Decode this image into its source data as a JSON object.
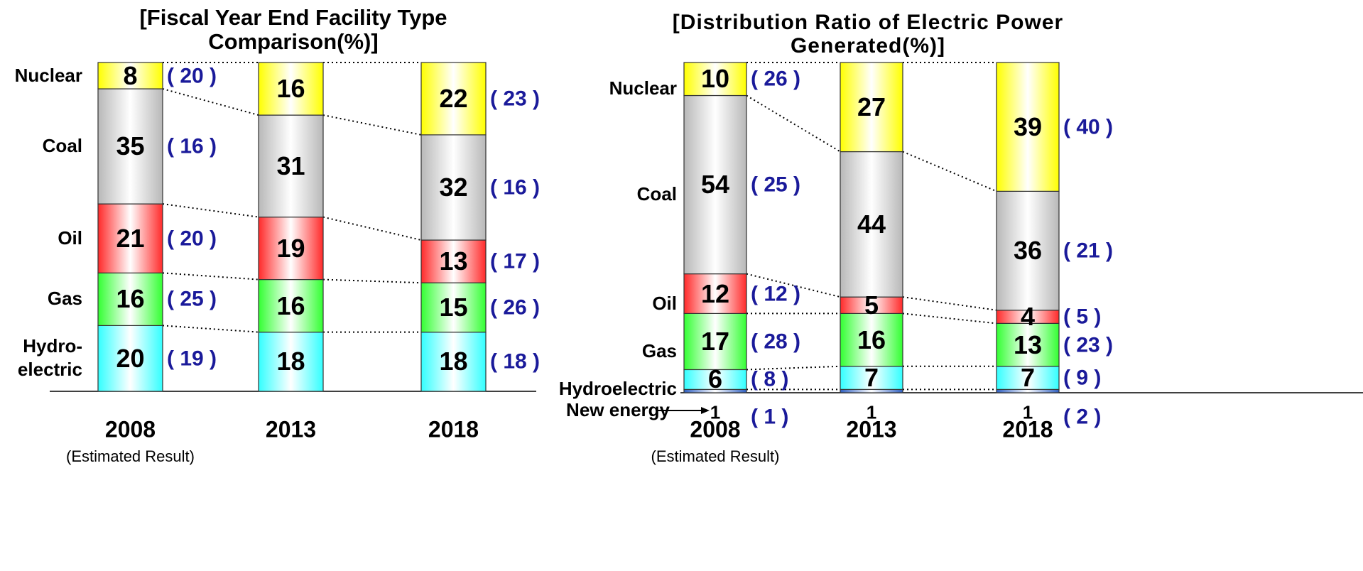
{
  "chart_data": [
    {
      "type": "bar",
      "stacked": true,
      "title": "[Fiscal Year End Facility Type Comparison(%)]",
      "categories": [
        "2008",
        "2013",
        "2018"
      ],
      "note": "(Estimated Result)",
      "series": [
        {
          "name": "Hydro-electric",
          "color": "#33ffff",
          "values": [
            20,
            18,
            18
          ],
          "bracket_labels": [
            "( 19 )",
            null,
            "( 18 )"
          ]
        },
        {
          "name": "Gas",
          "color": "#33ff33",
          "values": [
            16,
            16,
            15
          ],
          "bracket_labels": [
            "( 25 )",
            null,
            "( 26 )"
          ]
        },
        {
          "name": "Oil",
          "color": "#ff2a2a",
          "values": [
            21,
            19,
            13
          ],
          "bracket_labels": [
            "( 20 )",
            null,
            "( 17 )"
          ]
        },
        {
          "name": "Coal",
          "color": "#b8b8b8",
          "values": [
            35,
            31,
            32
          ],
          "bracket_labels": [
            "( 16 )",
            null,
            "( 16 )"
          ]
        },
        {
          "name": "Nuclear",
          "color": "#ffff00",
          "values": [
            8,
            16,
            22
          ],
          "bracket_labels": [
            "( 20 )",
            null,
            "( 23 )"
          ]
        }
      ]
    },
    {
      "type": "bar",
      "stacked": true,
      "title": "[Distribution Ratio of Electric Power Generated(%)]",
      "categories": [
        "2008",
        "2013",
        "2018"
      ],
      "note": "(Estimated Result)",
      "series": [
        {
          "name": "New energy",
          "color": "#2f5fc0",
          "values": [
            1,
            1,
            1
          ],
          "bracket_labels": [
            "( 1 )",
            null,
            "( 2 )"
          ]
        },
        {
          "name": "Hydroelectric",
          "color": "#33ffff",
          "values": [
            6,
            7,
            7
          ],
          "bracket_labels": [
            "( 8 )",
            null,
            "( 9 )"
          ]
        },
        {
          "name": "Gas",
          "color": "#33ff33",
          "values": [
            17,
            16,
            13
          ],
          "bracket_labels": [
            "( 28 )",
            null,
            "( 23 )"
          ]
        },
        {
          "name": "Oil",
          "color": "#ff2a2a",
          "values": [
            12,
            5,
            4
          ],
          "bracket_labels": [
            "( 12 )",
            null,
            "( 5 )"
          ]
        },
        {
          "name": "Coal",
          "color": "#b8b8b8",
          "values": [
            54,
            44,
            36
          ],
          "bracket_labels": [
            "( 25 )",
            null,
            "( 21 )"
          ]
        },
        {
          "name": "Nuclear",
          "color": "#ffff00",
          "values": [
            10,
            27,
            39
          ],
          "bracket_labels": [
            "( 26 )",
            null,
            "( 40 )"
          ]
        }
      ]
    }
  ]
}
